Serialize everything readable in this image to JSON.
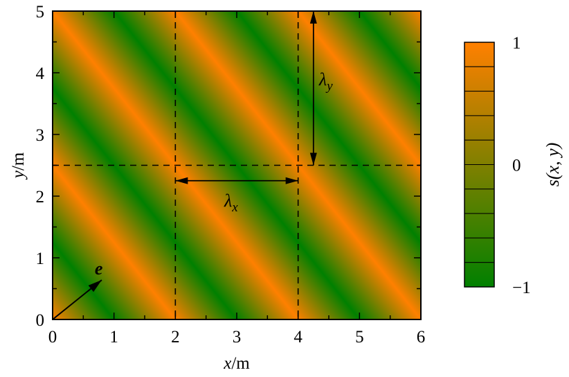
{
  "chart_data": {
    "type": "heatmap",
    "function_label": "s(x, y)",
    "x": {
      "label_var": "x",
      "label_unit": "/m",
      "range": [
        0,
        6
      ],
      "ticks": [
        0,
        1,
        2,
        3,
        4,
        5,
        6
      ],
      "tick_labels": [
        "0",
        "1",
        "2",
        "3",
        "4",
        "5",
        "6"
      ]
    },
    "y": {
      "label_var": "y",
      "label_unit": "/m",
      "range": [
        0,
        5
      ],
      "ticks": [
        0,
        1,
        2,
        3,
        4,
        5
      ],
      "tick_labels": [
        "0",
        "1",
        "2",
        "3",
        "4",
        "5"
      ]
    },
    "wavelength_x": 2,
    "wavelength_y": 2.5,
    "colorbar": {
      "range": [
        -1,
        1
      ],
      "levels": 10,
      "tick_labels": [
        "1",
        "0",
        "−1"
      ],
      "ticks": [
        1,
        0,
        -1
      ]
    },
    "colors": {
      "high": "#ff8000",
      "low": "#008000",
      "mid": "#808000"
    },
    "guides": {
      "dashed_vertical_x": [
        2,
        4
      ],
      "dashed_horizontal_y": [
        2.5
      ]
    },
    "annotations": {
      "lambda_x": {
        "symbol": "λ",
        "sub": "x",
        "from": [
          2,
          2.25
        ],
        "to": [
          4,
          2.25
        ]
      },
      "lambda_y": {
        "symbol": "λ",
        "sub": "y",
        "from": [
          4.25,
          5
        ],
        "to": [
          4.25,
          2.5
        ]
      },
      "e_vector": {
        "symbol": "e",
        "from": [
          0,
          0
        ],
        "to": [
          0.8,
          0.64
        ]
      }
    }
  }
}
